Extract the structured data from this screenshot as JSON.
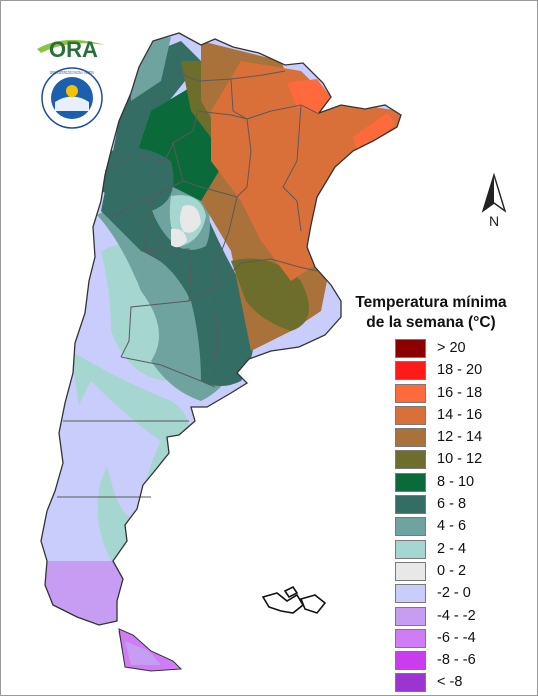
{
  "logo": {
    "text": "ORA"
  },
  "seal": {
    "text": "SERVICIO METEOROLÓGICO NACIONAL · ARGENTINA"
  },
  "north_arrow": {
    "label": "N"
  },
  "legend": {
    "title_line1": "Temperatura mínima",
    "title_line2": "de la semana (°C)",
    "items": [
      {
        "label": "> 20",
        "color": "#8b0000"
      },
      {
        "label": "18 - 20",
        "color": "#ff1a1a"
      },
      {
        "label": "16 - 18",
        "color": "#ff6a3d"
      },
      {
        "label": "14 - 16",
        "color": "#d9703a"
      },
      {
        "label": "12 - 14",
        "color": "#a8723a"
      },
      {
        "label": "10 - 12",
        "color": "#6e6e2c"
      },
      {
        "label": "8 - 10",
        "color": "#0b6a3a"
      },
      {
        "label": "6 - 8",
        "color": "#336d64"
      },
      {
        "label": "4 - 6",
        "color": "#6fa3a0"
      },
      {
        "label": "2 - 4",
        "color": "#a5d6cf"
      },
      {
        "label": "0 - 2",
        "color": "#e8e8e8"
      },
      {
        "label": "-2 - 0",
        "color": "#c9cdfb"
      },
      {
        "label": "-4 - -2",
        "color": "#c79df3"
      },
      {
        "label": "-6 - -4",
        "color": "#d07cf6"
      },
      {
        "label": "-8 - -6",
        "color": "#c93cef"
      },
      {
        "label": "< -8",
        "color": "#9b34d1"
      }
    ]
  }
}
